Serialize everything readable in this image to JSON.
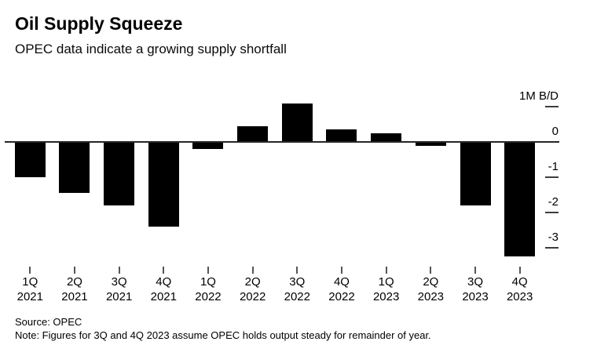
{
  "header": {
    "title": "Oil Supply Squeeze",
    "subtitle": "OPEC data indicate a growing supply shortfall"
  },
  "footer": {
    "source": "Source: OPEC",
    "note": "Note: Figures for 3Q and 4Q 2023 assume OPEC holds output steady for remainder of year."
  },
  "chart_data": {
    "type": "bar",
    "title": "Oil Supply Squeeze",
    "subtitle": "OPEC data indicate a growing supply shortfall",
    "unit_label": "1M B/D",
    "categories": [
      {
        "quarter": "1Q",
        "year": "2021"
      },
      {
        "quarter": "2Q",
        "year": "2021"
      },
      {
        "quarter": "3Q",
        "year": "2021"
      },
      {
        "quarter": "4Q",
        "year": "2021"
      },
      {
        "quarter": "1Q",
        "year": "2022"
      },
      {
        "quarter": "2Q",
        "year": "2022"
      },
      {
        "quarter": "3Q",
        "year": "2022"
      },
      {
        "quarter": "4Q",
        "year": "2022"
      },
      {
        "quarter": "1Q",
        "year": "2023"
      },
      {
        "quarter": "2Q",
        "year": "2023"
      },
      {
        "quarter": "3Q",
        "year": "2023"
      },
      {
        "quarter": "4Q",
        "year": "2023"
      }
    ],
    "values": [
      -1.0,
      -1.45,
      -1.8,
      -2.4,
      -0.2,
      0.45,
      1.1,
      0.35,
      0.25,
      -0.1,
      -1.8,
      -3.25
    ],
    "yticks": [
      {
        "value": 1,
        "label": "1M B/D"
      },
      {
        "value": 0,
        "label": "0"
      },
      {
        "value": -1,
        "label": "-1"
      },
      {
        "value": -2,
        "label": "-2"
      },
      {
        "value": -3,
        "label": "-3"
      }
    ],
    "ylim": [
      -3.5,
      1.5
    ],
    "grid": false,
    "legend": null,
    "colors": {
      "bar": "#000000",
      "zero_line": "#262626",
      "tick": "#3d3d3d",
      "text": "#000000",
      "background": "#ffffff"
    }
  }
}
